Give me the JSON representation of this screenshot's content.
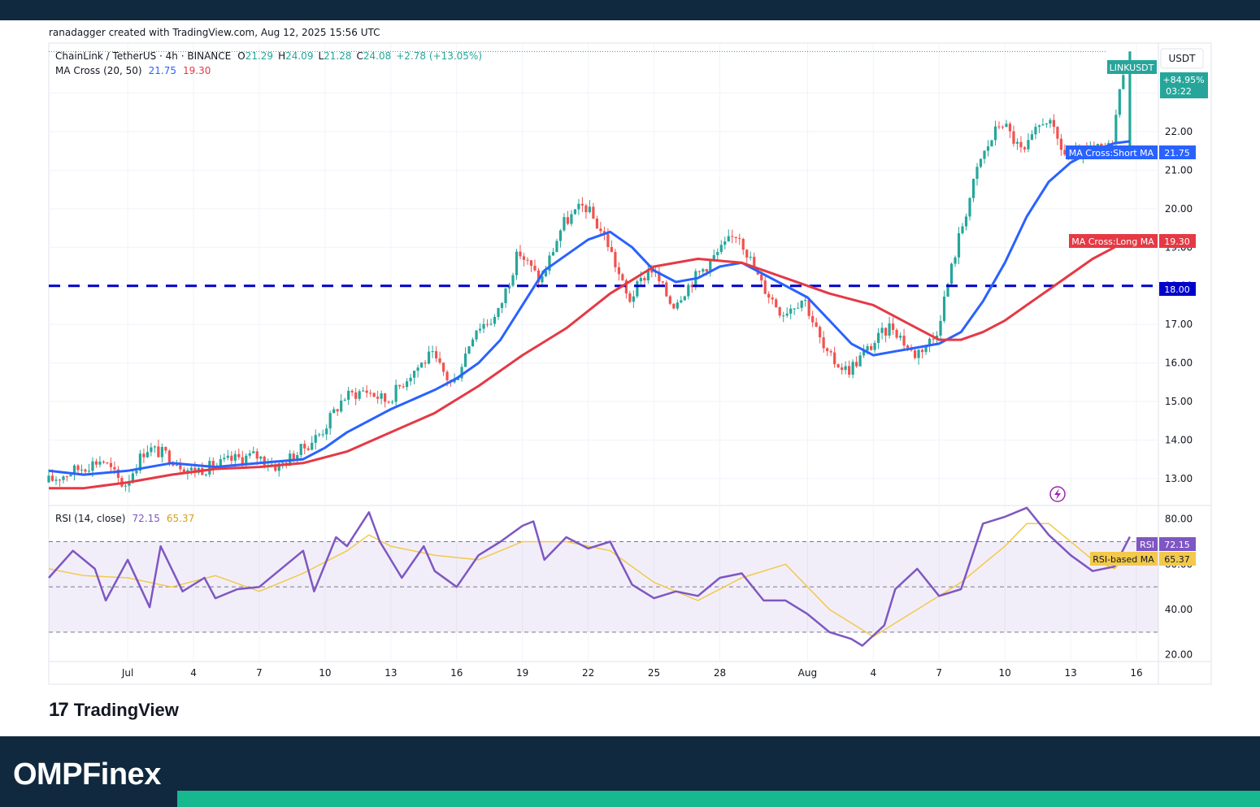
{
  "credit_line": "ranadagger created with TradingView.com, Aug 12, 2025 15:56 UTC",
  "header": {
    "symbol": "ChainLink / TetherUS · 4h · BINANCE",
    "o_label": "O",
    "o_value": "21.29",
    "h_label": "H",
    "h_value": "24.09",
    "l_label": "L",
    "l_value": "21.28",
    "c_label": "C",
    "c_value": "24.08",
    "change": "+2.78 (+13.05%)",
    "ma_label": "MA Cross (20, 50)",
    "ma_short": "21.75",
    "ma_long": "19.30"
  },
  "rsi_header": {
    "label": "RSI (14, close)",
    "value": "72.15",
    "ma_value": "65.37"
  },
  "currency": "USDT",
  "price_tags": {
    "symbol": "LINKUSDT",
    "pct": "+84.95%",
    "countdown": "03:22",
    "short_ma_label": "MA Cross:Short MA",
    "short_ma_value": "21.75",
    "long_ma_label": "MA Cross:Long MA",
    "long_ma_value": "19.30",
    "level_value": "18.00",
    "rsi_label": "RSI",
    "rsi_value": "72.15",
    "rsi_ma_label": "RSI-based MA",
    "rsi_ma_value": "65.37"
  },
  "brand": {
    "tv": "TradingView",
    "site_prefix": "OMPF",
    "site_i": "i",
    "site_suffix": "nex"
  },
  "colors": {
    "up": "#26a69a",
    "down": "#ef5350",
    "short_ma": "#2962ff",
    "long_ma": "#e53945",
    "level": "#0000cc",
    "rsi": "#7e57c2",
    "rsi_ma": "#f2c94c",
    "band": "#10293f",
    "accent": "#17b890"
  },
  "chart_data": [
    {
      "type": "candlestick",
      "title": "ChainLink / TetherUS · 4h · BINANCE",
      "ylabel": "USDT",
      "yticks": [
        13,
        14,
        15,
        16,
        17,
        18,
        19,
        20,
        21,
        22,
        23
      ],
      "ytick_labels": [
        "13.00",
        "14.00",
        "15.00",
        "16.00",
        "17.00",
        "18.00",
        "19.00",
        "20.00",
        "21.00",
        "22.00",
        "23.00"
      ],
      "xticks": [
        "Jul",
        "4",
        "7",
        "10",
        "13",
        "16",
        "19",
        "22",
        "25",
        "28",
        "Aug",
        "4",
        "7",
        "10",
        "13",
        "16"
      ],
      "xtick_days": [
        0,
        3,
        6,
        9,
        12,
        15,
        18,
        21,
        24,
        27,
        31,
        34,
        37,
        40,
        43,
        46
      ],
      "x_range_days": [
        -3.6,
        47
      ],
      "ylim": [
        12.3,
        24.3
      ],
      "ohlc_last": {
        "open": 21.29,
        "high": 24.09,
        "low": 21.28,
        "close": 24.08
      },
      "horizontal_level": 18.0,
      "price_path_days": [
        -3.6,
        -1,
        0,
        1,
        2,
        3,
        4,
        5,
        6,
        7,
        8,
        9,
        10,
        11,
        12,
        13,
        14,
        15,
        16,
        17,
        18,
        19,
        20,
        21,
        22,
        23,
        24,
        25,
        26,
        27,
        28,
        29,
        30,
        31,
        32,
        33,
        34,
        35,
        36,
        37,
        38,
        39,
        40,
        41,
        42,
        43,
        44,
        45,
        45.7
      ],
      "price_path": [
        12.9,
        13.5,
        12.8,
        13.8,
        13.6,
        13.2,
        13.3,
        13.5,
        13.6,
        13.3,
        13.7,
        14.2,
        15.1,
        15.3,
        15.0,
        15.7,
        16.2,
        15.4,
        16.9,
        17.2,
        18.9,
        18.1,
        19.6,
        20.1,
        19.2,
        17.6,
        18.5,
        17.5,
        18.2,
        18.8,
        19.4,
        18.1,
        17.3,
        17.7,
        16.2,
        15.8,
        16.4,
        17.0,
        16.2,
        16.7,
        19.1,
        21.2,
        22.3,
        21.4,
        22.4,
        21.3,
        21.5,
        21.6,
        24.08
      ],
      "series": [
        {
          "name": "MA Cross:Short MA",
          "last_value": 21.75,
          "x": [
            -3.6,
            -2,
            0,
            2,
            4,
            6,
            8,
            9,
            10,
            12,
            14,
            15,
            16,
            17,
            18,
            19,
            20,
            21,
            22,
            23,
            24,
            25,
            26,
            27,
            28,
            29,
            30,
            31,
            32,
            33,
            34,
            35,
            36,
            37,
            38,
            39,
            40,
            41,
            42,
            43,
            44,
            45,
            45.7
          ],
          "y": [
            13.2,
            13.1,
            13.2,
            13.4,
            13.3,
            13.4,
            13.5,
            13.8,
            14.2,
            14.8,
            15.3,
            15.6,
            16.0,
            16.6,
            17.5,
            18.4,
            18.8,
            19.2,
            19.4,
            19.0,
            18.4,
            18.1,
            18.2,
            18.5,
            18.6,
            18.3,
            18.0,
            17.7,
            17.1,
            16.5,
            16.2,
            16.3,
            16.4,
            16.5,
            16.8,
            17.6,
            18.6,
            19.8,
            20.7,
            21.2,
            21.5,
            21.7,
            21.75
          ]
        },
        {
          "name": "MA Cross:Long MA",
          "last_value": 19.3,
          "x": [
            -3.6,
            -2,
            0,
            2,
            4,
            6,
            8,
            10,
            12,
            14,
            16,
            18,
            20,
            22,
            24,
            26,
            28,
            30,
            32,
            34,
            36,
            37,
            38,
            39,
            40,
            41,
            42,
            43,
            44,
            45,
            45.7
          ],
          "y": [
            12.75,
            12.75,
            12.9,
            13.1,
            13.25,
            13.3,
            13.4,
            13.7,
            14.2,
            14.7,
            15.4,
            16.2,
            16.9,
            17.8,
            18.5,
            18.7,
            18.6,
            18.2,
            17.8,
            17.5,
            16.9,
            16.6,
            16.6,
            16.8,
            17.1,
            17.5,
            17.9,
            18.3,
            18.7,
            19.0,
            19.3
          ]
        }
      ]
    },
    {
      "type": "line",
      "title": "RSI (14, close)",
      "yticks": [
        20,
        40,
        60,
        80
      ],
      "ytick_labels": [
        "20.00",
        "40.00",
        "60.00",
        "80.00"
      ],
      "ylim": [
        17,
        86
      ],
      "bands": [
        30,
        50,
        70
      ],
      "series": [
        {
          "name": "RSI",
          "last_value": 72.15,
          "x": [
            -3.6,
            -2.5,
            -1.5,
            -1,
            0,
            1,
            1.5,
            2.5,
            3.5,
            4,
            5,
            6,
            7,
            8,
            8.5,
            9.5,
            10,
            11,
            11.5,
            12.5,
            13.5,
            14,
            15,
            16,
            17,
            18,
            18.5,
            19,
            20,
            21,
            22,
            23,
            24,
            25,
            26,
            27,
            28,
            29,
            30,
            31,
            32,
            33,
            33.5,
            34.5,
            35,
            36,
            37,
            38,
            39,
            40,
            41,
            42,
            43,
            44,
            45,
            45.7
          ],
          "y": [
            54,
            66,
            58,
            44,
            62,
            41,
            68,
            48,
            54,
            45,
            49,
            50,
            58,
            66,
            48,
            72,
            68,
            83,
            70,
            54,
            68,
            57,
            50,
            64,
            70,
            77,
            79,
            62,
            72,
            67,
            70,
            51,
            45,
            48,
            46,
            54,
            56,
            44,
            44,
            38,
            30,
            27,
            24,
            33,
            49,
            58,
            46,
            49,
            78,
            81,
            85,
            73,
            64,
            57,
            59,
            72.15
          ]
        },
        {
          "name": "RSI-based MA",
          "last_value": 65.37,
          "x": [
            -3.6,
            -2,
            0,
            2,
            4,
            6,
            8,
            10,
            11,
            12,
            14,
            16,
            18,
            20,
            22,
            24,
            26,
            28,
            30,
            32,
            34,
            36,
            38,
            40,
            41,
            42,
            43,
            44,
            45,
            45.7
          ],
          "y": [
            58,
            55,
            54,
            50,
            55,
            48,
            56,
            66,
            73,
            68,
            64,
            62,
            70,
            70,
            66,
            52,
            44,
            54,
            60,
            40,
            28,
            40,
            52,
            68,
            78,
            78,
            70,
            62,
            58,
            65.37
          ]
        }
      ]
    }
  ]
}
